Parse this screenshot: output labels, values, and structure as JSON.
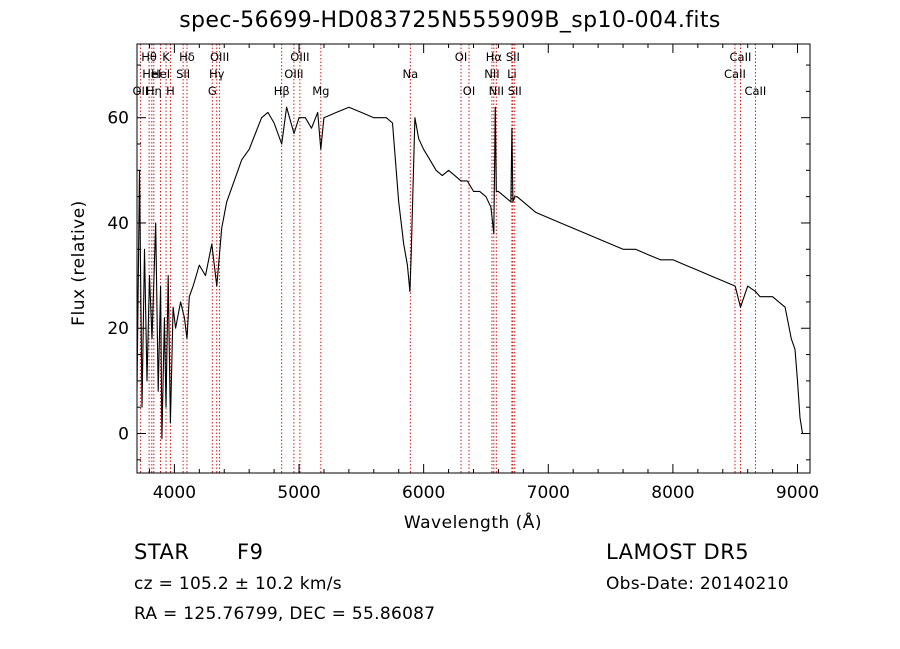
{
  "chart_data": {
    "type": "line",
    "title": "spec-56699-HD083725N555909B_sp10-004.fits",
    "xlabel": "Wavelength (Å)",
    "ylabel": "Flux (relative)",
    "xlim": [
      3700,
      9100
    ],
    "ylim": [
      -7.5,
      74
    ],
    "xticks": [
      4000,
      5000,
      6000,
      7000,
      8000,
      9000
    ],
    "yticks": [
      0,
      20,
      40,
      60
    ],
    "grid": false,
    "line_color": "#000000",
    "marker_color": "#cc0000",
    "series": [
      {
        "x": [
          3700,
          3720,
          3740,
          3760,
          3780,
          3800,
          3820,
          3850,
          3870,
          3889,
          3900,
          3920,
          3933,
          3950,
          3968,
          3990,
          4010,
          4050,
          4080,
          4101,
          4120,
          4150,
          4200,
          4250,
          4300,
          4340,
          4380,
          4420,
          4480,
          4540,
          4600,
          4650,
          4700,
          4750,
          4800,
          4861,
          4900,
          4960,
          5000,
          5050,
          5100,
          5150,
          5175,
          5200,
          5300,
          5400,
          5500,
          5600,
          5700,
          5750,
          5800,
          5840,
          5870,
          5890,
          5900,
          5930,
          5960,
          6000,
          6050,
          6100,
          6150,
          6200,
          6250,
          6300,
          6350,
          6400,
          6450,
          6500,
          6540,
          6563,
          6575,
          6583,
          6600,
          6650,
          6700,
          6708,
          6716,
          6730,
          6750,
          6800,
          6900,
          7000,
          7100,
          7200,
          7300,
          7400,
          7500,
          7600,
          7700,
          7800,
          7900,
          8000,
          8100,
          8200,
          8300,
          8400,
          8500,
          8542,
          8600,
          8662,
          8700,
          8750,
          8800,
          8850,
          8900,
          8950,
          8980,
          9000,
          9020,
          9040,
          9060
        ],
        "y": [
          8,
          50,
          5,
          35,
          10,
          30,
          18,
          40,
          8,
          28,
          -1,
          22,
          5,
          30,
          2,
          24,
          20,
          25,
          22,
          18,
          26,
          28,
          32,
          30,
          36,
          28,
          39,
          44,
          48,
          52,
          54,
          57,
          60,
          61,
          59,
          55,
          62,
          57,
          60,
          60,
          58,
          61,
          54,
          60,
          61,
          62,
          61,
          60,
          60,
          59,
          44,
          36,
          32,
          27,
          34,
          60,
          56,
          54,
          52,
          50,
          49,
          50,
          49,
          48,
          48,
          46,
          46,
          45,
          43,
          38,
          62,
          46,
          46,
          45,
          44,
          58,
          44,
          45,
          45,
          44,
          42,
          41,
          40,
          39,
          38,
          37,
          36,
          35,
          35,
          34,
          33,
          33,
          32,
          31,
          30,
          29,
          28,
          24,
          28,
          27,
          26,
          26,
          26,
          25,
          24,
          18,
          16,
          10,
          3,
          0,
          0
        ]
      }
    ],
    "lines": [
      {
        "x": 3727,
        "label": "OII",
        "row": 2
      },
      {
        "x": 3797,
        "label": "Hθ",
        "row": 0
      },
      {
        "x": 3819,
        "label": "HeI",
        "row": 1
      },
      {
        "x": 3835,
        "label": "Hη",
        "row": 2
      },
      {
        "x": 3889,
        "label": "HeI",
        "row": 1
      },
      {
        "x": 3933,
        "label": "K",
        "row": 0
      },
      {
        "x": 3968,
        "label": "H",
        "row": 2
      },
      {
        "x": 4070,
        "label": "SII",
        "row": 1
      },
      {
        "x": 4101,
        "label": "Hδ",
        "row": 0
      },
      {
        "x": 4304,
        "label": "G",
        "row": 2
      },
      {
        "x": 4340,
        "label": "Hγ",
        "row": 1
      },
      {
        "x": 4363,
        "label": "OIII",
        "row": 0
      },
      {
        "x": 4861,
        "label": "Hβ",
        "row": 2
      },
      {
        "x": 4959,
        "label": "OIII",
        "row": 1
      },
      {
        "x": 5007,
        "label": "OIII",
        "row": 0
      },
      {
        "x": 5175,
        "label": "Mg",
        "row": 2
      },
      {
        "x": 5893,
        "label": "Na",
        "row": 1
      },
      {
        "x": 6300,
        "label": "OI",
        "row": 0
      },
      {
        "x": 6364,
        "label": "OI",
        "row": 2
      },
      {
        "x": 6548,
        "label": "NII",
        "row": 1
      },
      {
        "x": 6563,
        "label": "Hα",
        "row": 0
      },
      {
        "x": 6583,
        "label": "NII",
        "row": 2
      },
      {
        "x": 6708,
        "label": "Li",
        "row": 1
      },
      {
        "x": 6716,
        "label": "SII",
        "row": 0
      },
      {
        "x": 6731,
        "label": "SII",
        "row": 2
      },
      {
        "x": 8498,
        "label": "CaII",
        "row": 1
      },
      {
        "x": 8542,
        "label": "CaII",
        "row": 0
      },
      {
        "x": 8662,
        "label": "CaII",
        "row": 2
      }
    ]
  },
  "info": {
    "class_label": "STAR",
    "subclass": "F9",
    "survey": "LAMOST DR5",
    "cz_text": "cz = 105.2 ± 10.2 km/s",
    "obs_date_text": "Obs-Date: 20140210",
    "coords_text": "RA = 125.76799, DEC =  55.86087"
  }
}
